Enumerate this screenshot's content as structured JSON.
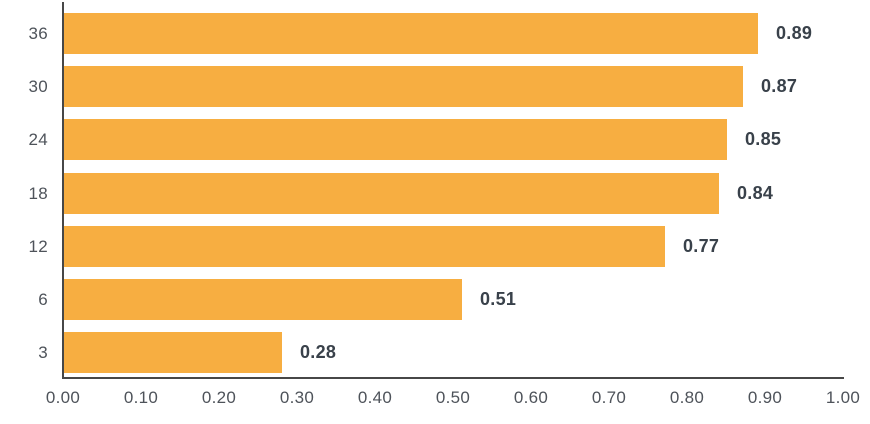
{
  "chart_data": {
    "type": "bar",
    "orientation": "horizontal",
    "title": "",
    "xlabel": "",
    "ylabel": "",
    "categories": [
      "36",
      "30",
      "24",
      "18",
      "12",
      "6",
      "3"
    ],
    "values": [
      0.89,
      0.87,
      0.85,
      0.84,
      0.77,
      0.51,
      0.28
    ],
    "value_labels": [
      "0.89",
      "0.87",
      "0.85",
      "0.84",
      "0.77",
      "0.51",
      "0.28"
    ],
    "x_ticks": [
      "0.00",
      "0.10",
      "0.20",
      "0.30",
      "0.40",
      "0.50",
      "0.60",
      "0.70",
      "0.80",
      "0.90",
      "1.00"
    ],
    "x_tick_values": [
      0,
      0.1,
      0.2,
      0.3,
      0.4,
      0.5,
      0.6,
      0.7,
      0.8,
      0.9,
      1.0
    ],
    "xlim": [
      0,
      1
    ],
    "grid": false,
    "legend": null,
    "colors": {
      "bar": "#F7AE41",
      "axis": "#474747",
      "tick_label": "#4E535A",
      "category_label": "#4E535A",
      "value_label": "#39414A"
    }
  }
}
